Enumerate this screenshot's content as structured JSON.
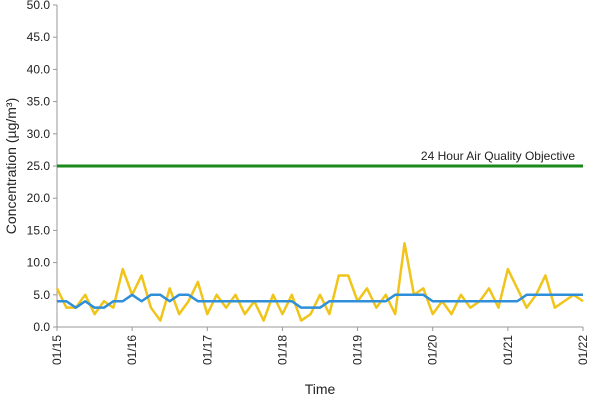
{
  "chart_data": {
    "type": "line",
    "x_label": "Time",
    "y_label": "Concentration (µg/m³)",
    "x": [
      0,
      0.125,
      0.25,
      0.375,
      0.5,
      0.625,
      0.75,
      0.875,
      1,
      1.125,
      1.25,
      1.375,
      1.5,
      1.625,
      1.75,
      1.875,
      2,
      2.125,
      2.25,
      2.375,
      2.5,
      2.625,
      2.75,
      2.875,
      3,
      3.125,
      3.25,
      3.375,
      3.5,
      3.625,
      3.75,
      3.875,
      4,
      4.125,
      4.25,
      4.375,
      4.5,
      4.625,
      4.75,
      4.875,
      5,
      5.125,
      5.25,
      5.375,
      5.5,
      5.625,
      5.75,
      5.875,
      6,
      6.125,
      6.25,
      6.375,
      6.5,
      6.625,
      6.75,
      6.875,
      7
    ],
    "series": [
      {
        "color": "#f0c419",
        "values": [
          6,
          3,
          3,
          5,
          2,
          4,
          3,
          9,
          5,
          8,
          3,
          1,
          6,
          2,
          4,
          7,
          2,
          5,
          3,
          5,
          2,
          4,
          1,
          5,
          2,
          5,
          1,
          2,
          5,
          2,
          8,
          8,
          4,
          6,
          3,
          5,
          2,
          13,
          5,
          6,
          2,
          4,
          2,
          5,
          3,
          4,
          6,
          3,
          9,
          6,
          3,
          5,
          8,
          3,
          4,
          5,
          4
        ]
      },
      {
        "color": "#2f8fd8",
        "values": [
          4,
          4,
          3,
          4,
          3,
          3,
          4,
          4,
          5,
          4,
          5,
          5,
          4,
          5,
          5,
          4,
          4,
          4,
          4,
          4,
          4,
          4,
          4,
          4,
          4,
          4,
          3,
          3,
          3,
          4,
          4,
          4,
          4,
          4,
          4,
          4,
          5,
          5,
          5,
          5,
          4,
          4,
          4,
          4,
          4,
          4,
          4,
          4,
          4,
          4,
          5,
          5,
          5,
          5,
          5,
          5,
          5
        ]
      }
    ],
    "threshold": {
      "value": 25,
      "label": "24 Hour Air Quality Objective",
      "color": "#1a8a1a"
    },
    "xlim": [
      0,
      7
    ],
    "xticks": [
      {
        "value": 0,
        "label": "01/15"
      },
      {
        "value": 1,
        "label": "01/16"
      },
      {
        "value": 2,
        "label": "01/17"
      },
      {
        "value": 3,
        "label": "01/18"
      },
      {
        "value": 4,
        "label": "01/19"
      },
      {
        "value": 5,
        "label": "01/20"
      },
      {
        "value": 6,
        "label": "01/21"
      },
      {
        "value": 7,
        "label": "01/22"
      }
    ],
    "ylim": [
      0,
      50
    ],
    "yticks": [
      {
        "value": 0,
        "label": "0.0"
      },
      {
        "value": 5,
        "label": "5.0"
      },
      {
        "value": 10,
        "label": "10.0"
      },
      {
        "value": 15,
        "label": "15.0"
      },
      {
        "value": 20,
        "label": "20.0"
      },
      {
        "value": 25,
        "label": "25.0"
      },
      {
        "value": 30,
        "label": "30.0"
      },
      {
        "value": 35,
        "label": "35.0"
      },
      {
        "value": 40,
        "label": "40.0"
      },
      {
        "value": 45,
        "label": "45.0"
      },
      {
        "value": 50,
        "label": "50.0"
      }
    ]
  }
}
